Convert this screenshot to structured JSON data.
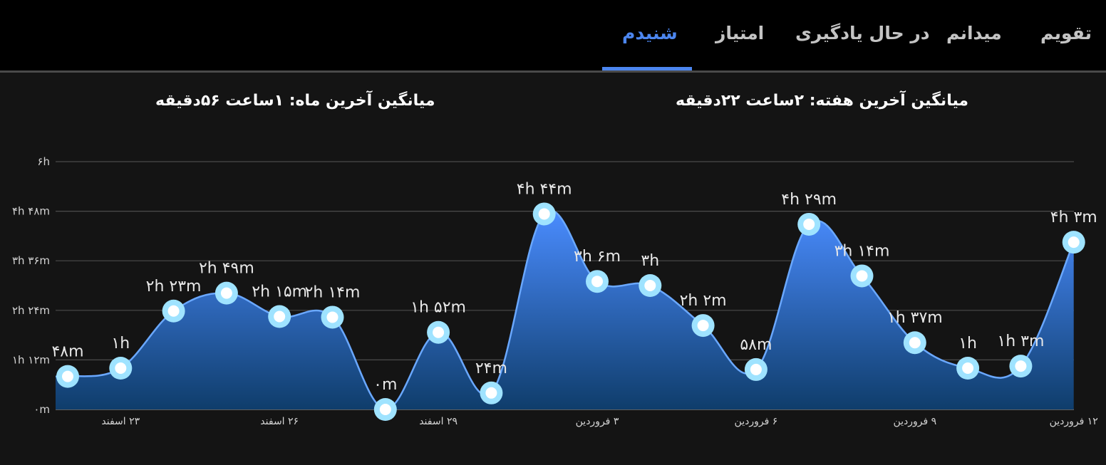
{
  "tabs": [
    {
      "label": "تقویم",
      "active": false
    },
    {
      "label": "میدانم",
      "active": false
    },
    {
      "label": "در حال یادگیری",
      "active": false
    },
    {
      "label": "امتیاز",
      "active": false
    },
    {
      "label": "شنیدم",
      "active": true
    }
  ],
  "summary": {
    "week_average": "میانگین آخرین هفته: ۲ساعت  ۲۲دقیقه",
    "month_average": "میانگین آخرین ماه: ۱ساعت  ۵۶دقیقه"
  },
  "colors": {
    "accent": "#4c86ef",
    "area_top": "#4a8cff",
    "area_bottom": "#0f3d6b",
    "line": "#6aa8ff",
    "marker_ring": "#9fe3ff"
  },
  "chart_data": {
    "type": "area",
    "y_unit": "minutes",
    "ylim": [
      0,
      360
    ],
    "y_ticks": [
      {
        "value": 0,
        "label": "۰m"
      },
      {
        "value": 72,
        "label": "۱h ۱۲m"
      },
      {
        "value": 144,
        "label": "۲h ۲۴m"
      },
      {
        "value": 216,
        "label": "۳h ۳۶m"
      },
      {
        "value": 288,
        "label": "۴h ۴۸m"
      },
      {
        "value": 360,
        "label": "۶h"
      }
    ],
    "grid": true,
    "x_ticks": [
      {
        "index": 1,
        "label": "۲۳ اسفند"
      },
      {
        "index": 4,
        "label": "۲۶ اسفند"
      },
      {
        "index": 7,
        "label": "۲۹ اسفند"
      },
      {
        "index": 10,
        "label": "۳ فروردین"
      },
      {
        "index": 13,
        "label": "۶ فروردین"
      },
      {
        "index": 16,
        "label": "۹ فروردین"
      },
      {
        "index": 19,
        "label": "۱۲ فروردین"
      }
    ],
    "points": [
      {
        "value": 48,
        "label": "۴۸m"
      },
      {
        "value": 60,
        "label": "۱h"
      },
      {
        "value": 143,
        "label": "۲h ۲۳m"
      },
      {
        "value": 169,
        "label": "۲h ۴۹m"
      },
      {
        "value": 135,
        "label": "۲h ۱۵m"
      },
      {
        "value": 134,
        "label": "۲h ۱۴m"
      },
      {
        "value": 0,
        "label": "۰m"
      },
      {
        "value": 112,
        "label": "۱h ۵۲m"
      },
      {
        "value": 24,
        "label": "۲۴m"
      },
      {
        "value": 284,
        "label": "۴h ۴۴m"
      },
      {
        "value": 186,
        "label": "۳h ۶m"
      },
      {
        "value": 180,
        "label": "۳h"
      },
      {
        "value": 122,
        "label": "۲h ۲m"
      },
      {
        "value": 58,
        "label": "۵۸m"
      },
      {
        "value": 269,
        "label": "۴h ۲۹m"
      },
      {
        "value": 194,
        "label": "۳h ۱۴m"
      },
      {
        "value": 97,
        "label": "۱h ۳۷m"
      },
      {
        "value": 60,
        "label": "۱h"
      },
      {
        "value": 63,
        "label": "۱h ۳m"
      },
      {
        "value": 243,
        "label": "۴h ۳m"
      }
    ]
  }
}
